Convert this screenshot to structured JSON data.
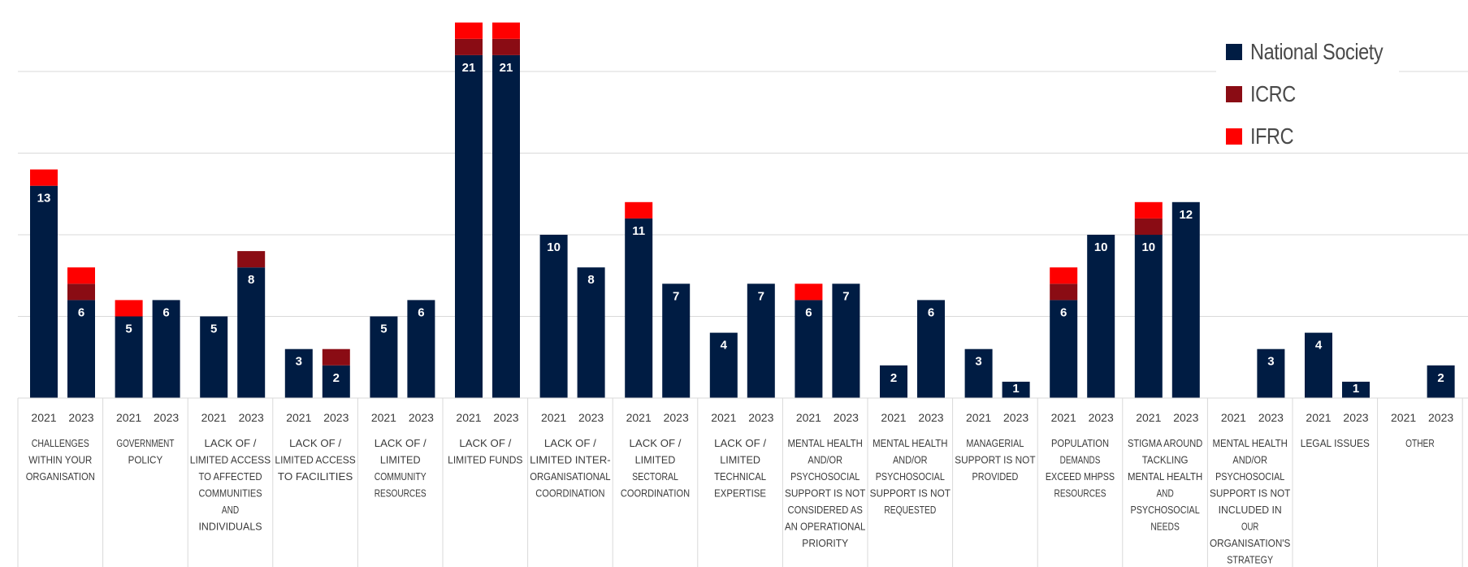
{
  "colors": {
    "national_society": "#001c43",
    "icrc": "#8a0c14",
    "ifrc": "#ff0000",
    "grid": "#d9d9d9",
    "text": "#3b3b3b"
  },
  "legend": {
    "placement": "top-right",
    "items": [
      {
        "label": "National Society",
        "color": "#001c43"
      },
      {
        "label": "ICRC",
        "color": "#8a0c14"
      },
      {
        "label": "IFRC",
        "color": "#ff0000"
      }
    ]
  },
  "chart_data": {
    "type": "bar",
    "stacked": true,
    "ylim": [
      0,
      23
    ],
    "grid": true,
    "groups": [
      {
        "lines": [
          "CHALLENGES",
          "WITHIN YOUR",
          "ORGANISATION"
        ]
      },
      {
        "lines": [
          "GOVERNMENT",
          "POLICY"
        ]
      },
      {
        "lines": [
          "LACK OF /",
          "LIMITED ACCESS",
          "TO AFFECTED",
          "COMMUNITIES",
          "AND",
          "INDIVIDUALS"
        ]
      },
      {
        "lines": [
          "LACK OF /",
          "LIMITED ACCESS",
          "TO FACILITIES"
        ]
      },
      {
        "lines": [
          "LACK OF /",
          "LIMITED",
          "COMMUNITY",
          "RESOURCES"
        ]
      },
      {
        "lines": [
          "LACK OF /",
          "LIMITED FUNDS"
        ]
      },
      {
        "lines": [
          "LACK OF /",
          "LIMITED INTER-",
          "ORGANISATIONAL",
          "COORDINATION"
        ]
      },
      {
        "lines": [
          "LACK OF /",
          "LIMITED",
          "SECTORAL",
          "COORDINATION"
        ]
      },
      {
        "lines": [
          "LACK OF /",
          "LIMITED",
          "TECHNICAL",
          "EXPERTISE"
        ]
      },
      {
        "lines": [
          "MENTAL HEALTH",
          "AND/OR",
          "PSYCHOSOCIAL",
          "SUPPORT IS NOT",
          "CONSIDERED AS",
          "AN OPERATIONAL",
          "PRIORITY"
        ]
      },
      {
        "lines": [
          "MENTAL HEALTH",
          "AND/OR",
          "PSYCHOSOCIAL",
          "SUPPORT IS NOT",
          "REQUESTED"
        ]
      },
      {
        "lines": [
          "MANAGERIAL",
          "SUPPORT IS NOT",
          "PROVIDED"
        ]
      },
      {
        "lines": [
          "POPULATION",
          "DEMANDS",
          "EXCEED MHPSS",
          "RESOURCES"
        ]
      },
      {
        "lines": [
          "STIGMA AROUND",
          "TACKLING",
          "MENTAL HEALTH",
          "AND",
          "PSYCHOSOCIAL",
          "NEEDS"
        ]
      },
      {
        "lines": [
          "MENTAL HEALTH",
          "AND/OR",
          "PSYCHOSOCIAL",
          "SUPPORT IS NOT",
          "INCLUDED IN",
          "OUR",
          "ORGANISATION'S",
          "STRATEGY"
        ]
      },
      {
        "lines": [
          "LEGAL ISSUES"
        ]
      },
      {
        "lines": [
          "OTHER"
        ]
      }
    ],
    "years": [
      "2021",
      "2023"
    ],
    "series": [
      {
        "name": "National Society",
        "color": "#001c43",
        "values": [
          [
            13,
            6
          ],
          [
            5,
            6
          ],
          [
            5,
            8
          ],
          [
            3,
            2
          ],
          [
            5,
            6
          ],
          [
            21,
            21
          ],
          [
            10,
            8
          ],
          [
            11,
            7
          ],
          [
            4,
            7
          ],
          [
            6,
            7
          ],
          [
            2,
            6
          ],
          [
            3,
            1
          ],
          [
            6,
            10
          ],
          [
            10,
            12
          ],
          [
            0,
            3
          ],
          [
            4,
            1
          ],
          [
            0,
            2
          ]
        ]
      },
      {
        "name": "ICRC",
        "color": "#8a0c14",
        "values": [
          [
            0,
            1
          ],
          [
            0,
            0
          ],
          [
            0,
            1
          ],
          [
            0,
            1
          ],
          [
            0,
            0
          ],
          [
            1,
            1
          ],
          [
            0,
            0
          ],
          [
            0,
            0
          ],
          [
            0,
            0
          ],
          [
            0,
            0
          ],
          [
            0,
            0
          ],
          [
            0,
            0
          ],
          [
            1,
            0
          ],
          [
            1,
            0
          ],
          [
            0,
            0
          ],
          [
            0,
            0
          ],
          [
            0,
            0
          ]
        ]
      },
      {
        "name": "IFRC",
        "color": "#ff0000",
        "values": [
          [
            1,
            1
          ],
          [
            1,
            0
          ],
          [
            0,
            0
          ],
          [
            0,
            0
          ],
          [
            0,
            0
          ],
          [
            1,
            1
          ],
          [
            0,
            0
          ],
          [
            1,
            0
          ],
          [
            0,
            0
          ],
          [
            1,
            0
          ],
          [
            0,
            0
          ],
          [
            0,
            0
          ],
          [
            1,
            0
          ],
          [
            1,
            0
          ],
          [
            0,
            0
          ],
          [
            0,
            0
          ],
          [
            0,
            0
          ]
        ]
      }
    ]
  }
}
